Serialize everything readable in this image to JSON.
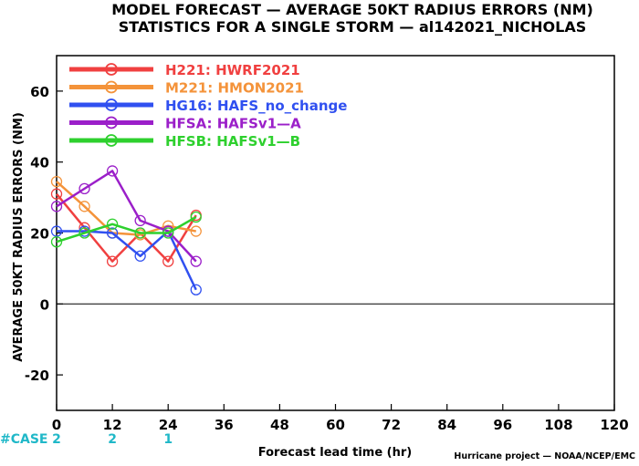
{
  "title": {
    "line1": "MODEL FORECAST — AVERAGE 50KT RADIUS ERRORS (NM)",
    "line2": "STATISTICS FOR A SINGLE STORM — al142021_NICHOLAS"
  },
  "footer": {
    "case_label": "#CASE",
    "credit": "Hurricane project — NOAA/NCEP/EMC"
  },
  "chart_data": {
    "type": "line",
    "title": "MODEL FORECAST — AVERAGE 50KT RADIUS ERRORS (NM)",
    "subtitle": "STATISTICS FOR A SINGLE STORM — al142021_NICHOLAS",
    "xlabel": "Forecast lead time (hr)",
    "ylabel": "AVERAGE 50KT RADIUS ERRORS (NM)",
    "xlim": [
      0,
      120
    ],
    "ylim": [
      -30,
      70
    ],
    "xticks": [
      0,
      12,
      24,
      36,
      48,
      60,
      72,
      84,
      96,
      108,
      120
    ],
    "yticks": [
      -20,
      0,
      20,
      40,
      60
    ],
    "zero_line": true,
    "grid": false,
    "legend_position": "top-left",
    "series": [
      {
        "name": "H221: HWRF2021",
        "color": "#f04040",
        "points": [
          [
            0,
            31
          ],
          [
            6,
            21.5
          ],
          [
            12,
            12
          ],
          [
            18,
            20
          ],
          [
            24,
            12
          ],
          [
            30,
            25
          ]
        ]
      },
      {
        "name": "M221: HMON2021",
        "color": "#f4933a",
        "points": [
          [
            0,
            34.5
          ],
          [
            6,
            27.5
          ],
          [
            12,
            20
          ],
          [
            18,
            19.5
          ],
          [
            24,
            22
          ],
          [
            30,
            20.5
          ]
        ]
      },
      {
        "name": "HG16: HAFS_no_change",
        "color": "#3050f0",
        "points": [
          [
            0,
            20.5
          ],
          [
            6,
            20.5
          ],
          [
            12,
            20
          ],
          [
            18,
            13.5
          ],
          [
            24,
            20.5
          ],
          [
            30,
            4
          ]
        ]
      },
      {
        "name": "HFSA: HAFSv1—A",
        "color": "#9b1fc9",
        "points": [
          [
            0,
            27.5
          ],
          [
            6,
            32.5
          ],
          [
            12,
            37.5
          ],
          [
            18,
            23.5
          ],
          [
            24,
            20.5
          ],
          [
            30,
            12
          ]
        ]
      },
      {
        "name": "HFSB: HAFSv1—B",
        "color": "#2ed02e",
        "points": [
          [
            0,
            17.5
          ],
          [
            6,
            20
          ],
          [
            12,
            22.5
          ],
          [
            18,
            20
          ],
          [
            24,
            20
          ],
          [
            30,
            24.5
          ]
        ]
      }
    ],
    "cases": [
      {
        "x": 0,
        "count": "2"
      },
      {
        "x": 12,
        "count": "2"
      },
      {
        "x": 24,
        "count": "1"
      }
    ],
    "case_color": "#20b8c8"
  }
}
